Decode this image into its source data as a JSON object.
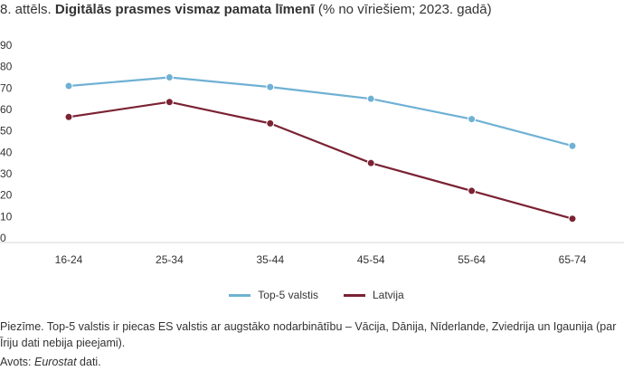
{
  "header": {
    "prefix": "8. attēls.",
    "title_bold": "Digitālās prasmes vismaz pamata līmenī",
    "title_suffix": "(% no vīriešiem; 2023. gadā)"
  },
  "chart_data": {
    "type": "line",
    "categories": [
      "16-24",
      "25-34",
      "35-44",
      "45-54",
      "55-64",
      "65-74"
    ],
    "series": [
      {
        "name": "Top-5 valstis",
        "color": "#6fb1d4",
        "values": [
          71,
          75,
          70.5,
          65,
          55.5,
          43
        ]
      },
      {
        "name": "Latvija",
        "color": "#7b2233",
        "values": [
          56.5,
          63.5,
          53.5,
          35,
          22,
          9
        ]
      }
    ],
    "yticks": [
      0,
      10,
      20,
      30,
      40,
      50,
      60,
      70,
      80,
      90
    ],
    "ylim": [
      0,
      90
    ],
    "grid": false,
    "legend_position": "bottom"
  },
  "footer": {
    "note": "Piezīme. Top-5 valstis ir piecas ES valstis ar augstāko nodarbinātību – Vācija, Dānija, Nīderlande, Zviedrija un Igaunija (par Īriju dati nebija pieejami).",
    "source_prefix": "Avots:",
    "source_italic": "Eurostat",
    "source_suffix": "dati."
  }
}
